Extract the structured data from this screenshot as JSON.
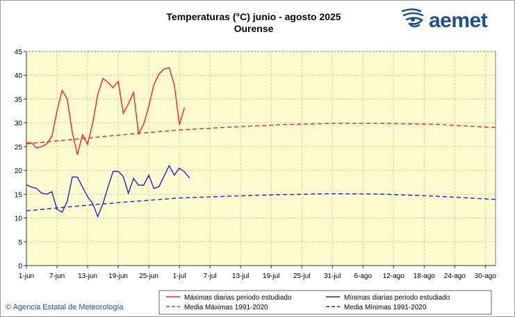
{
  "header": {
    "title": "Temperaturas (°C) junio - agosto 2025",
    "subtitle": "Ourense"
  },
  "logo": {
    "text": "aemet",
    "icon": "aemet-swirl-icon"
  },
  "footer": {
    "copyright": "© Agencia Estatal de Meteorología"
  },
  "colors": {
    "max": "#ff2020",
    "min": "#2020d0",
    "plot_bg": "#fefbd0",
    "grid": "#d8d2a8"
  },
  "chart_data": {
    "type": "line",
    "title": "Temperaturas (°C) junio - agosto 2025",
    "subtitle": "Ourense",
    "xlabel": "",
    "ylabel": "",
    "x_range": [
      "2025-06-01",
      "2025-09-01"
    ],
    "ylim": [
      0,
      45
    ],
    "y_ticks": [
      0,
      5,
      10,
      15,
      20,
      25,
      30,
      35,
      40,
      45
    ],
    "x_ticks": [
      {
        "day": 0,
        "label": "1-jun"
      },
      {
        "day": 6,
        "label": "7-jun"
      },
      {
        "day": 12,
        "label": "13-jun"
      },
      {
        "day": 18,
        "label": "19-jun"
      },
      {
        "day": 24,
        "label": "25-jun"
      },
      {
        "day": 30,
        "label": "1-jul"
      },
      {
        "day": 36,
        "label": "7-jul"
      },
      {
        "day": 42,
        "label": "13-jul"
      },
      {
        "day": 48,
        "label": "19-jul"
      },
      {
        "day": 54,
        "label": "25-jul"
      },
      {
        "day": 60,
        "label": "31-jul"
      },
      {
        "day": 66,
        "label": "6-ago"
      },
      {
        "day": 72,
        "label": "12-ago"
      },
      {
        "day": 78,
        "label": "18-ago"
      },
      {
        "day": 84,
        "label": "24-ago"
      },
      {
        "day": 90,
        "label": "30-ago"
      }
    ],
    "grid": true,
    "legend_position": "bottom",
    "series": [
      {
        "name": "Máximas diarias periodo estudiado",
        "color": "#ff2020",
        "style": "solid",
        "values": [
          25.8,
          25.8,
          24.7,
          25.0,
          25.6,
          27.2,
          32.5,
          36.8,
          35.0,
          28.0,
          23.3,
          27.5,
          25.5,
          30.0,
          36.0,
          39.3,
          38.5,
          37.4,
          38.7,
          32.0,
          34.0,
          36.4,
          27.7,
          29.7,
          33.5,
          38.0,
          40.3,
          41.3,
          41.6,
          38.0,
          29.6,
          33.2
        ]
      },
      {
        "name": "Mínimas diarias periodo estudiado",
        "color": "#2020d0",
        "style": "solid",
        "values": [
          17.0,
          16.5,
          16.2,
          15.2,
          15.0,
          15.5,
          11.8,
          11.2,
          13.5,
          18.6,
          18.6,
          16.5,
          14.5,
          13.0,
          10.3,
          13.0,
          16.5,
          19.8,
          19.8,
          18.7,
          15.2,
          18.3,
          16.9,
          16.9,
          19.0,
          16.2,
          16.6,
          18.8,
          21.0,
          19.0,
          20.5,
          19.7,
          18.4
        ]
      },
      {
        "name": "Media Máximas 1991-2020",
        "color": "#ff2020",
        "style": "dashed",
        "points": [
          [
            0,
            25.6
          ],
          [
            10,
            26.6
          ],
          [
            20,
            27.6
          ],
          [
            30,
            28.5
          ],
          [
            40,
            29.1
          ],
          [
            50,
            29.6
          ],
          [
            60,
            29.9
          ],
          [
            70,
            29.9
          ],
          [
            80,
            29.7
          ],
          [
            92,
            29.0
          ]
        ]
      },
      {
        "name": "Media Mínimas 1991-2020",
        "color": "#2020d0",
        "style": "dashed",
        "points": [
          [
            0,
            11.5
          ],
          [
            10,
            12.5
          ],
          [
            20,
            13.4
          ],
          [
            30,
            14.2
          ],
          [
            40,
            14.6
          ],
          [
            50,
            14.9
          ],
          [
            60,
            15.1
          ],
          [
            70,
            15.0
          ],
          [
            80,
            14.6
          ],
          [
            92,
            13.9
          ]
        ]
      }
    ]
  }
}
